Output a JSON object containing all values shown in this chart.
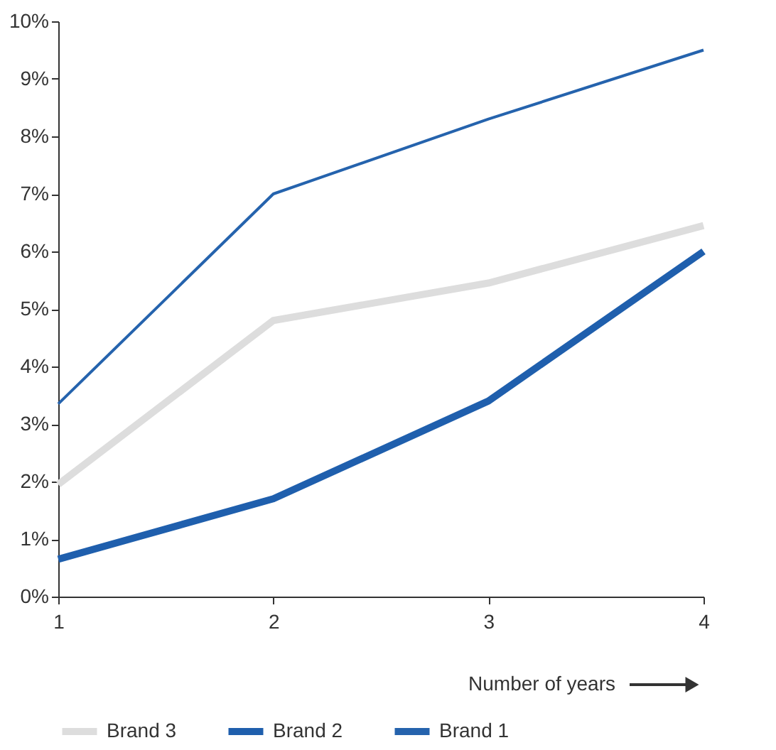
{
  "chart_data": {
    "type": "line",
    "xlabel": "Number of years",
    "x": [
      1,
      2,
      3,
      4
    ],
    "xlim": [
      1,
      4
    ],
    "xticks": [
      1,
      2,
      3,
      4
    ],
    "ylim": [
      0,
      10
    ],
    "yticks": [
      {
        "value": 0,
        "label": "0%"
      },
      {
        "value": 1,
        "label": "1%"
      },
      {
        "value": 2,
        "label": "2%"
      },
      {
        "value": 3,
        "label": "3%"
      },
      {
        "value": 4,
        "label": "4%"
      },
      {
        "value": 5,
        "label": "5%"
      },
      {
        "value": 6,
        "label": "6%"
      },
      {
        "value": 7,
        "label": "7%"
      },
      {
        "value": 8,
        "label": "8%"
      },
      {
        "value": 9,
        "label": "9%"
      },
      {
        "value": 10,
        "label": "10%"
      }
    ],
    "grid": false,
    "legend": "bottom",
    "marker": "none",
    "series": [
      {
        "name": "Brand 3",
        "color": "#dddddd",
        "values": [
          1.95,
          4.8,
          5.45,
          6.45
        ]
      },
      {
        "name": "Brand 2",
        "color": "#1f5fad",
        "values": [
          0.65,
          1.7,
          3.4,
          6.0
        ]
      },
      {
        "name": "Brand 1",
        "color": "#2563ad",
        "values": [
          3.35,
          7.0,
          8.3,
          9.5
        ]
      }
    ]
  }
}
